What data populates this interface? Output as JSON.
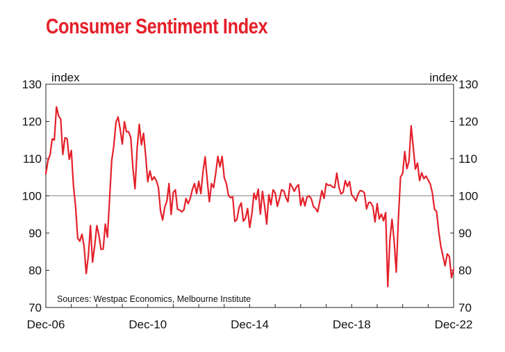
{
  "chart_data": {
    "type": "line",
    "title": "Consumer Sentiment Index",
    "left_axis_unit": "index",
    "right_axis_unit": "index",
    "source": "Sources: Westpac Economics, Melbourne Institute",
    "x_tick_labels": [
      "Dec-06",
      "Dec-10",
      "Dec-14",
      "Dec-18",
      "Dec-22"
    ],
    "y_ticks": [
      70,
      80,
      90,
      100,
      110,
      120,
      130
    ],
    "ylim": [
      70,
      130
    ],
    "xlim": [
      "2006-12",
      "2022-12"
    ],
    "reference_line": 100,
    "grid": false,
    "color": "#e4202a",
    "series": [
      {
        "x": [
          "2006-12",
          "2007-01",
          "2007-02",
          "2007-03",
          "2007-04",
          "2007-05",
          "2007-06",
          "2007-07",
          "2007-08",
          "2007-09",
          "2007-10",
          "2007-11",
          "2007-12",
          "2008-01",
          "2008-02",
          "2008-03",
          "2008-04",
          "2008-05",
          "2008-06",
          "2008-07",
          "2008-08",
          "2008-09",
          "2008-10",
          "2008-11",
          "2008-12",
          "2009-01",
          "2009-02",
          "2009-03",
          "2009-04",
          "2009-05",
          "2009-06",
          "2009-07",
          "2009-08",
          "2009-09",
          "2009-10",
          "2009-11",
          "2009-12",
          "2010-01",
          "2010-02",
          "2010-03",
          "2010-04",
          "2010-05",
          "2010-06",
          "2010-07",
          "2010-08",
          "2010-09",
          "2010-10",
          "2010-11",
          "2010-12",
          "2011-01",
          "2011-02",
          "2011-03",
          "2011-04",
          "2011-05",
          "2011-06",
          "2011-07",
          "2011-08",
          "2011-09",
          "2011-10",
          "2011-11",
          "2011-12",
          "2012-01",
          "2012-02",
          "2012-03",
          "2012-04",
          "2012-05",
          "2012-06",
          "2012-07",
          "2012-08",
          "2012-09",
          "2012-10",
          "2012-11",
          "2012-12",
          "2013-01",
          "2013-02",
          "2013-03",
          "2013-04",
          "2013-05",
          "2013-06",
          "2013-07",
          "2013-08",
          "2013-09",
          "2013-10",
          "2013-11",
          "2013-12",
          "2014-01",
          "2014-02",
          "2014-03",
          "2014-04",
          "2014-05",
          "2014-06",
          "2014-07",
          "2014-08",
          "2014-09",
          "2014-10",
          "2014-11",
          "2014-12",
          "2015-01",
          "2015-02",
          "2015-03",
          "2015-04",
          "2015-05",
          "2015-06",
          "2015-07",
          "2015-08",
          "2015-09",
          "2015-10",
          "2015-11",
          "2015-12",
          "2016-01",
          "2016-02",
          "2016-03",
          "2016-04",
          "2016-05",
          "2016-06",
          "2016-07",
          "2016-08",
          "2016-09",
          "2016-10",
          "2016-11",
          "2016-12",
          "2017-01",
          "2017-02",
          "2017-03",
          "2017-04",
          "2017-05",
          "2017-06",
          "2017-07",
          "2017-08",
          "2017-09",
          "2017-10",
          "2017-11",
          "2017-12",
          "2018-01",
          "2018-02",
          "2018-03",
          "2018-04",
          "2018-05",
          "2018-06",
          "2018-07",
          "2018-08",
          "2018-09",
          "2018-10",
          "2018-11",
          "2018-12",
          "2019-01",
          "2019-02",
          "2019-03",
          "2019-04",
          "2019-05",
          "2019-06",
          "2019-07",
          "2019-08",
          "2019-09",
          "2019-10",
          "2019-11",
          "2019-12",
          "2020-01",
          "2020-02",
          "2020-03",
          "2020-04",
          "2020-05",
          "2020-06",
          "2020-07",
          "2020-08",
          "2020-09",
          "2020-10",
          "2020-11",
          "2020-12",
          "2021-01",
          "2021-02",
          "2021-03",
          "2021-04",
          "2021-05",
          "2021-06",
          "2021-07",
          "2021-08",
          "2021-09",
          "2021-10",
          "2021-11",
          "2021-12",
          "2022-01",
          "2022-02",
          "2022-03",
          "2022-04",
          "2022-05",
          "2022-06",
          "2022-07",
          "2022-08",
          "2022-09",
          "2022-10",
          "2022-11",
          "2022-12"
        ],
        "values": [
          105.9,
          109.5,
          111,
          115.3,
          115,
          123.9,
          121.5,
          120.6,
          111.1,
          115.6,
          115.4,
          109.8,
          112.2,
          102.7,
          97.2,
          88.6,
          87.8,
          89.7,
          86.5,
          79.1,
          83.8,
          92,
          82.2,
          86.6,
          92,
          89.4,
          85.6,
          85.7,
          92.4,
          88.9,
          99,
          109.4,
          113.4,
          119.7,
          121.2,
          117.9,
          113.9,
          119.9,
          117.2,
          117.2,
          115.6,
          107.4,
          101.9,
          112.9,
          119.2,
          113.7,
          116.8,
          110.8,
          103.8,
          106.7,
          104.2,
          105.1,
          104.1,
          102.3,
          95.9,
          93.5,
          97,
          98.6,
          103.3,
          95,
          100.9,
          101.6,
          96.4,
          96.2,
          95.7,
          96.2,
          99.3,
          97.9,
          99.3,
          101.7,
          103.3,
          100.6,
          103.9,
          100.6,
          106.5,
          110.5,
          104.2,
          98.4,
          103.3,
          102.2,
          106.1,
          110.6,
          107.8,
          110.6,
          104.9,
          103.3,
          100.1,
          99.5,
          99.7,
          93.1,
          93.7,
          96.9,
          98.1,
          93.2,
          94,
          96.6,
          91.5,
          95.1,
          100.7,
          99,
          101.8,
          95.1,
          101.2,
          97.3,
          92.4,
          100.3,
          97.6,
          101.6,
          100.8,
          97.2,
          99.2,
          101.6,
          101.4,
          99.6,
          98.4,
          103.3,
          102.4,
          101.2,
          102.4,
          103,
          97.4,
          99.6,
          97.3,
          99.7,
          100,
          99.2,
          97.1,
          96.6,
          95.7,
          98.5,
          101.4,
          99.3,
          103.3,
          102.8,
          102.9,
          102.4,
          102.2,
          106.1,
          102.4,
          100.5,
          101,
          104.1,
          102.5,
          103.8,
          100.3,
          99.6,
          98.6,
          100.4,
          101.4,
          101.3,
          100.8,
          96.5,
          98.2,
          98.2,
          97.1,
          93,
          97.9,
          93.8,
          95.1,
          93.3,
          95.5,
          75.6,
          88.1,
          93.7,
          87.9,
          79.5,
          93.8,
          105,
          106,
          111.9,
          107.3,
          109.3,
          118.8,
          113.1,
          107.2,
          108.8,
          104.1,
          106.2,
          104.6,
          105.3,
          104.3,
          103.2,
          100.8,
          96.4,
          95.8,
          90.4,
          86.4,
          83.8,
          81.2,
          84.4,
          83.7,
          78,
          80.3
        ]
      }
    ]
  }
}
